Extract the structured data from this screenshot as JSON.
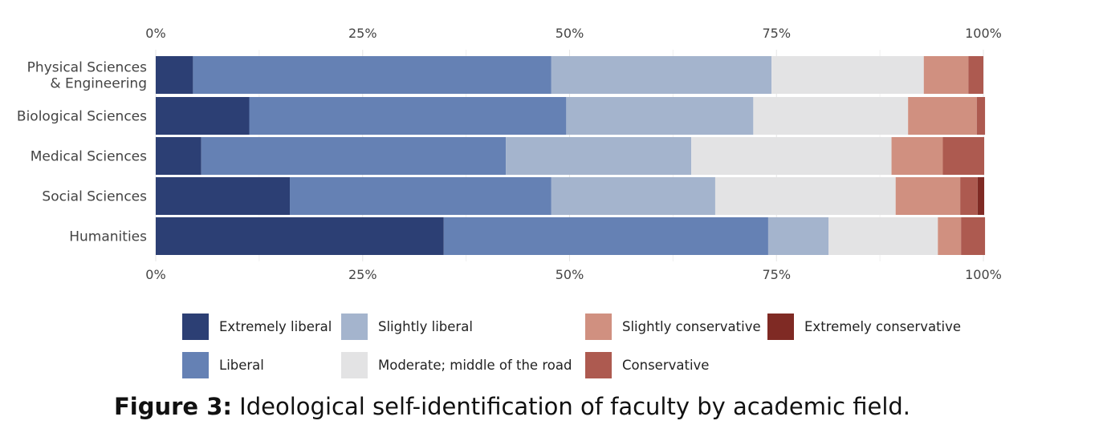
{
  "chart_data": {
    "type": "bar",
    "orientation": "horizontal",
    "stacked": "percent",
    "categories": [
      "Physical Sciences\n& Engineering",
      "Biological Sciences",
      "Medical Sciences",
      "Social Sciences",
      "Humanities"
    ],
    "series": [
      {
        "name": "Extremely liberal",
        "color": "#2c3f74",
        "values": [
          4.5,
          11.3,
          5.5,
          16.2,
          34.8
        ]
      },
      {
        "name": "Liberal",
        "color": "#6581b4",
        "values": [
          43.3,
          38.3,
          36.8,
          31.6,
          39.2
        ]
      },
      {
        "name": "Slightly liberal",
        "color": "#a4b4cd",
        "values": [
          26.6,
          22.6,
          22.4,
          19.8,
          7.3
        ]
      },
      {
        "name": "Moderate; middle of the road",
        "color": "#e3e3e4",
        "values": [
          18.4,
          18.7,
          24.2,
          21.8,
          13.2
        ]
      },
      {
        "name": "Slightly conservative",
        "color": "#d09080",
        "values": [
          5.4,
          8.3,
          6.2,
          7.8,
          2.8
        ]
      },
      {
        "name": "Conservative",
        "color": "#ad5a50",
        "values": [
          1.8,
          1.0,
          5.0,
          2.1,
          2.9
        ]
      },
      {
        "name": "Extremely conservative",
        "color": "#7f2a24",
        "values": [
          0.0,
          0.0,
          0.0,
          0.8,
          0.0
        ]
      }
    ],
    "x_ticks": [
      "0%",
      "25%",
      "50%",
      "75%",
      "100%"
    ],
    "xlim": [
      0,
      100
    ],
    "grid": true,
    "legend_position": "bottom"
  },
  "caption": {
    "label": "Figure 3:",
    "text": " Ideological self-identification of faculty by academic field."
  }
}
